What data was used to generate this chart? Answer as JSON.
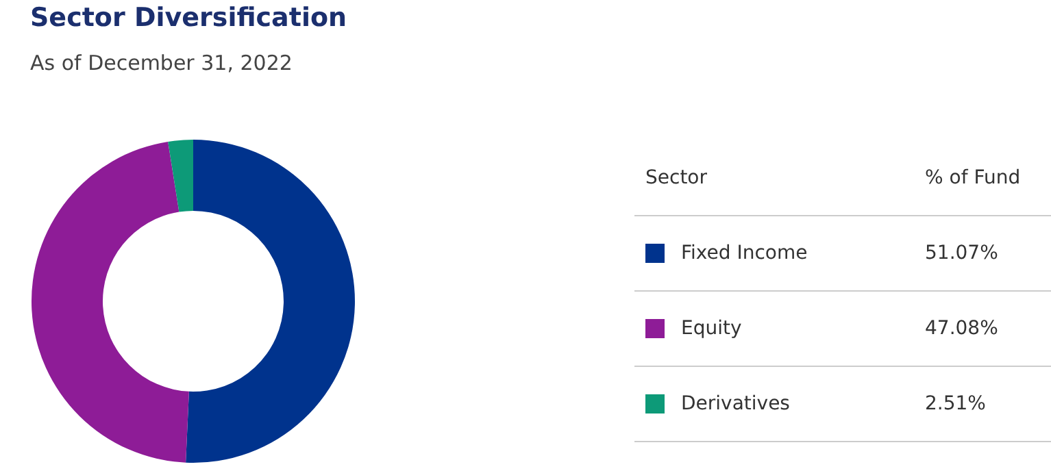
{
  "chart_data": {
    "type": "donut",
    "title": "Sector Diversification",
    "subtitle": "As of December 31, 2022",
    "legend_title": "Sector",
    "annotations": [
      "% of Fund"
    ],
    "categories": [
      "Fixed Income",
      "Equity",
      "Derivatives"
    ],
    "values": [
      51.07,
      47.08,
      2.51
    ],
    "colors": [
      "#00338d",
      "#8e1c97",
      "#0d9a78"
    ],
    "value_labels": [
      "51.07%",
      "47.08%",
      "2.51%"
    ],
    "legend": "right"
  }
}
